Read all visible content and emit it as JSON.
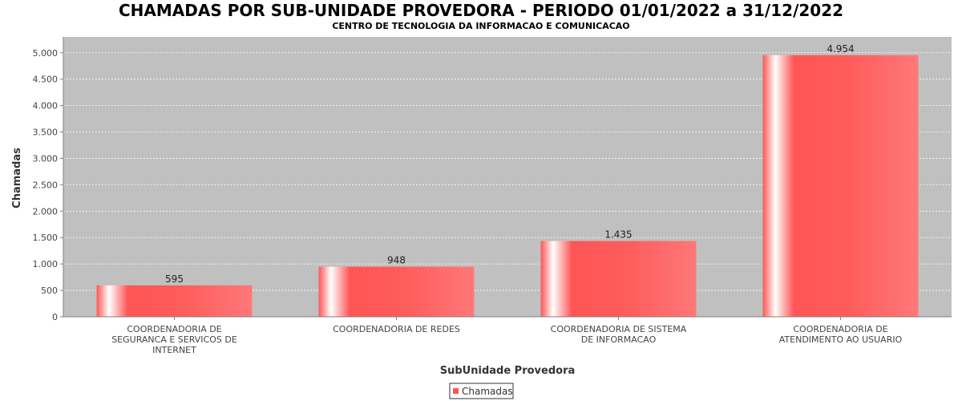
{
  "chart_data": {
    "type": "bar",
    "title": "CHAMADAS POR SUB-UNIDADE PROVEDORA - PERIODO 01/01/2022 a 31/12/2022",
    "subtitle": "CENTRO DE TECNOLOGIA DA INFORMACAO E COMUNICACAO",
    "xlabel": "SubUnidade Provedora",
    "ylabel": "Chamadas",
    "categories": [
      [
        "COORDENADORIA DE",
        "SEGURANCA E SERVICOS DE",
        "INTERNET"
      ],
      [
        "COORDENADORIA DE REDES"
      ],
      [
        "COORDENADORIA DE SISTEMA",
        "DE INFORMACAO"
      ],
      [
        "COORDENADORIA DE",
        "ATENDIMENTO AO USUARIO"
      ]
    ],
    "series": [
      {
        "name": "Chamadas",
        "values": [
          595,
          948,
          1435,
          4954
        ]
      }
    ],
    "value_labels": [
      "595",
      "948",
      "1.435",
      "4.954"
    ],
    "ylim": [
      0,
      5300
    ],
    "yticks": [
      0,
      500,
      1000,
      1500,
      2000,
      2500,
      3000,
      3500,
      4000,
      4500,
      5000
    ],
    "ytick_labels": [
      "0",
      "500",
      "1.000",
      "1.500",
      "2.000",
      "2.500",
      "3.000",
      "3.500",
      "4.000",
      "4.500",
      "5.000"
    ],
    "grid": true,
    "legend_position": "bottom-center",
    "colors": {
      "bar": "#ff5555",
      "plot_background": "#c0c0c0",
      "grid": "#ffffff"
    }
  }
}
